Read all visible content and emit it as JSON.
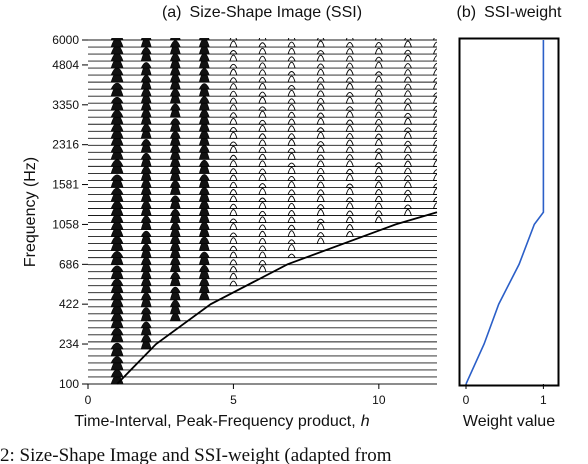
{
  "figure": {
    "caption": "2: Size-Shape Image and SSI-weight (adapted from"
  },
  "chart_data": [
    {
      "type": "line",
      "panel": "(a)",
      "title": "Size-Shape Image (SSI)",
      "xlabel": "Time-Interval, Peak-Frequency product,",
      "xlabel_var": "h",
      "ylabel": "Frequency (Hz)",
      "x_ticks": [
        0,
        5,
        10
      ],
      "xlim": [
        0,
        12
      ],
      "y_ticks": [
        "100",
        "234",
        "422",
        "686",
        "1058",
        "1581",
        "2316",
        "3350",
        "4804",
        "6000"
      ],
      "channel_count": 50,
      "y_scale": "ERB-rate (log-like)",
      "boundary_curve": {
        "description": "h = f / 100",
        "points": [
          [
            1,
            100
          ],
          [
            2.34,
            234
          ],
          [
            4.22,
            422
          ],
          [
            6.86,
            686
          ],
          [
            10.58,
            1058
          ],
          [
            12,
            1200
          ]
        ]
      },
      "pulse_columns_h": [
        1,
        2,
        3,
        4,
        5,
        6,
        7,
        8,
        9,
        10,
        11,
        12
      ]
    },
    {
      "type": "line",
      "panel": "(b)",
      "title": "SSI-weight",
      "xlabel": "Weight value",
      "x_ticks": [
        "0",
        "1"
      ],
      "xlim": [
        0,
        1.15
      ],
      "series": [
        {
          "values_by_frequency": [
            [
              100,
              0.0
            ],
            [
              234,
              0.234
            ],
            [
              422,
              0.422
            ],
            [
              686,
              0.686
            ],
            [
              1058,
              0.882
            ],
            [
              1200,
              1.0
            ],
            [
              1581,
              1.0
            ],
            [
              2316,
              1.0
            ],
            [
              3350,
              1.0
            ],
            [
              4804,
              1.0
            ],
            [
              6000,
              1.0
            ]
          ],
          "color": "#2b5fc8"
        }
      ]
    }
  ]
}
